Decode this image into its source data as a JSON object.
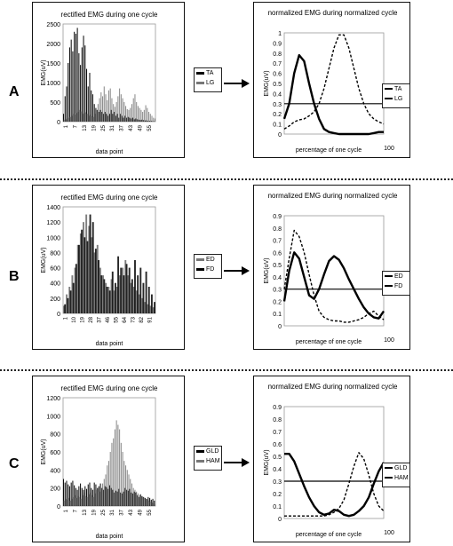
{
  "chart_data": [
    {
      "id": "A-raw",
      "type": "bar",
      "title": "rectified EMG during one cycle",
      "xlabel": "data point",
      "ylabel": "EMG(uV)",
      "ylim": [
        0,
        2500
      ],
      "y_ticks": [
        "2500",
        "2000",
        "1500",
        "1000",
        "500",
        "0"
      ],
      "x_ticks": [
        "1",
        "7",
        "13",
        "19",
        "25",
        "31",
        "37",
        "43",
        "49",
        "55"
      ],
      "legend": [
        "TA",
        "LG"
      ],
      "series": [
        {
          "name": "TA",
          "color": "#000000",
          "values": [
            200,
            650,
            900,
            1500,
            1900,
            2100,
            1800,
            2300,
            2250,
            2400,
            1750,
            1450,
            1900,
            2200,
            1950,
            1350,
            900,
            1250,
            800,
            700,
            450,
            350,
            300,
            250,
            300,
            250,
            200,
            250,
            200,
            150,
            200,
            300,
            200,
            250,
            150,
            200,
            100,
            200,
            150,
            100,
            150,
            100,
            120,
            100,
            80,
            100,
            60,
            80,
            60,
            50,
            40,
            50,
            40,
            30,
            30,
            20,
            20,
            20,
            10,
            10
          ]
        },
        {
          "name": "LG",
          "color": "#777777",
          "values": [
            50,
            60,
            80,
            100,
            120,
            150,
            200,
            180,
            220,
            250,
            300,
            260,
            200,
            220,
            240,
            200,
            150,
            180,
            140,
            120,
            200,
            300,
            450,
            600,
            750,
            650,
            900,
            700,
            550,
            800,
            850,
            600,
            450,
            380,
            500,
            650,
            850,
            700,
            600,
            500,
            400,
            320,
            300,
            350,
            450,
            600,
            700,
            500,
            400,
            350,
            300,
            250,
            300,
            420,
            350,
            250,
            200,
            150,
            100,
            80
          ]
        }
      ]
    },
    {
      "id": "A-norm",
      "type": "line",
      "title": "normalized EMG during normalized cycle",
      "xlabel": "percentage of one cycle",
      "x_end_label": "100",
      "ylabel": "EMG(uV)",
      "ylim": [
        0,
        1
      ],
      "y_ticks": [
        "1",
        "0.9",
        "0.8",
        "0.7",
        "0.6",
        "0.5",
        "0.4",
        "0.3",
        "0.2",
        "0.1",
        "0"
      ],
      "threshold": 0.3,
      "legend": [
        "TA",
        "LG"
      ],
      "x": [
        0,
        5,
        10,
        15,
        20,
        25,
        30,
        35,
        40,
        45,
        50,
        55,
        60,
        65,
        70,
        75,
        80,
        85,
        90,
        95,
        100
      ],
      "series": [
        {
          "name": "TA",
          "dashed": false,
          "values": [
            0.15,
            0.3,
            0.6,
            0.78,
            0.72,
            0.5,
            0.3,
            0.15,
            0.05,
            0.02,
            0.01,
            0,
            0,
            0,
            0,
            0,
            0,
            0,
            0.01,
            0.02,
            0.02
          ]
        },
        {
          "name": "LG",
          "dashed": true,
          "values": [
            0.05,
            0.08,
            0.12,
            0.14,
            0.15,
            0.18,
            0.22,
            0.3,
            0.45,
            0.65,
            0.85,
            0.98,
            0.98,
            0.85,
            0.65,
            0.45,
            0.3,
            0.2,
            0.15,
            0.12,
            0.1
          ]
        }
      ]
    },
    {
      "id": "B-raw",
      "type": "bar",
      "title": "rectified EMG during one cycle",
      "xlabel": "data point",
      "ylabel": "EMG(uV)",
      "ylim": [
        0,
        1400
      ],
      "y_ticks": [
        "1400",
        "1200",
        "1000",
        "800",
        "600",
        "400",
        "200",
        "0"
      ],
      "x_ticks": [
        "1",
        "10",
        "19",
        "28",
        "37",
        "46",
        "55",
        "64",
        "73",
        "82",
        "91"
      ],
      "legend": [
        "ED",
        "FD"
      ],
      "series": [
        {
          "name": "ED",
          "color": "#777777",
          "values": [
            100,
            250,
            350,
            500,
            600,
            900,
            1050,
            1200,
            1300,
            1150,
            1000,
            800,
            900,
            600,
            500,
            400,
            350,
            450,
            300,
            350,
            500,
            600,
            700,
            500,
            400,
            350,
            300,
            250,
            200,
            150,
            120,
            100,
            80
          ]
        },
        {
          "name": "FD",
          "color": "#000000",
          "values": [
            120,
            200,
            300,
            400,
            650,
            900,
            1100,
            1000,
            950,
            1300,
            1200,
            850,
            700,
            500,
            450,
            350,
            300,
            550,
            400,
            750,
            600,
            500,
            650,
            600,
            450,
            700,
            500,
            600,
            400,
            550,
            350,
            250,
            150
          ]
        }
      ]
    },
    {
      "id": "B-norm",
      "type": "line",
      "title": "normalized EMG during normalized cycle",
      "xlabel": "percentage of one cycle",
      "x_end_label": "100",
      "ylabel": "EMG(uV)",
      "ylim": [
        0,
        0.9
      ],
      "y_ticks": [
        "0.9",
        "0.8",
        "0.7",
        "0.6",
        "0.5",
        "0.4",
        "0.3",
        "0.2",
        "0.1",
        "0"
      ],
      "threshold": 0.3,
      "legend": [
        "ED",
        "FD"
      ],
      "x": [
        0,
        5,
        10,
        15,
        20,
        25,
        30,
        35,
        40,
        45,
        50,
        55,
        60,
        65,
        70,
        75,
        80,
        85,
        90,
        95,
        100
      ],
      "series": [
        {
          "name": "ED",
          "dashed": true,
          "values": [
            0.3,
            0.55,
            0.78,
            0.73,
            0.6,
            0.42,
            0.25,
            0.12,
            0.07,
            0.05,
            0.04,
            0.04,
            0.03,
            0.03,
            0.04,
            0.05,
            0.07,
            0.1,
            0.12,
            0.08,
            0.05
          ]
        },
        {
          "name": "FD",
          "dashed": false,
          "values": [
            0.2,
            0.45,
            0.6,
            0.55,
            0.4,
            0.25,
            0.22,
            0.3,
            0.42,
            0.53,
            0.57,
            0.54,
            0.47,
            0.38,
            0.3,
            0.22,
            0.15,
            0.1,
            0.07,
            0.06,
            0.12
          ]
        }
      ]
    },
    {
      "id": "C-raw",
      "type": "bar",
      "title": "rectified EMG during one cycle",
      "xlabel": "data point",
      "ylabel": "EMG(uV)",
      "ylim": [
        0,
        1200
      ],
      "y_ticks": [
        "1200",
        "1000",
        "800",
        "600",
        "400",
        "200",
        "0"
      ],
      "x_ticks": [
        "1",
        "7",
        "13",
        "19",
        "25",
        "31",
        "37",
        "43",
        "49",
        "55"
      ],
      "legend": [
        "GLD",
        "HAM"
      ],
      "series": [
        {
          "name": "GLD",
          "color": "#000000",
          "values": [
            300,
            260,
            280,
            240,
            220,
            260,
            280,
            230,
            200,
            180,
            220,
            250,
            200,
            180,
            220,
            190,
            240,
            260,
            200,
            180,
            260,
            240,
            200,
            220,
            250,
            200,
            180,
            220,
            210,
            190,
            230,
            200,
            180,
            150,
            170,
            160,
            190,
            150,
            140,
            160,
            200,
            180,
            170,
            190,
            150,
            140,
            160,
            150,
            120,
            100,
            130,
            110,
            100,
            90,
            80,
            100,
            90,
            70,
            80,
            60
          ]
        },
        {
          "name": "HAM",
          "color": "#777777",
          "values": [
            60,
            80,
            70,
            90,
            60,
            80,
            100,
            120,
            90,
            110,
            100,
            80,
            120,
            150,
            110,
            100,
            130,
            150,
            120,
            100,
            140,
            180,
            200,
            160,
            200,
            250,
            300,
            350,
            450,
            500,
            600,
            700,
            750,
            850,
            950,
            900,
            850,
            700,
            600,
            500,
            450,
            400,
            350,
            300,
            250,
            200,
            180,
            160,
            140,
            120,
            110,
            100,
            90,
            80,
            70,
            60,
            50,
            40,
            30,
            20
          ]
        }
      ]
    },
    {
      "id": "C-norm",
      "type": "line",
      "title": "normalized EMG during normalized cycle",
      "xlabel": "percentage of one cycle",
      "x_end_label": "100",
      "ylabel": "EMG(uV)",
      "ylim": [
        0,
        0.9
      ],
      "y_ticks": [
        "0.9",
        "0.8",
        "0.7",
        "0.6",
        "0.5",
        "0.4",
        "0.3",
        "0.2",
        "0.1",
        "0"
      ],
      "threshold": 0.3,
      "legend": [
        "GLD",
        "HAM"
      ],
      "x": [
        0,
        5,
        10,
        15,
        20,
        25,
        30,
        35,
        40,
        45,
        50,
        55,
        60,
        65,
        70,
        75,
        80,
        85,
        90,
        95,
        100
      ],
      "series": [
        {
          "name": "GLD",
          "dashed": false,
          "values": [
            0.52,
            0.52,
            0.46,
            0.36,
            0.26,
            0.17,
            0.1,
            0.05,
            0.03,
            0.04,
            0.07,
            0.06,
            0.03,
            0.02,
            0.03,
            0.06,
            0.1,
            0.17,
            0.28,
            0.38,
            0.45
          ]
        },
        {
          "name": "HAM",
          "dashed": true,
          "values": [
            0.02,
            0.02,
            0.02,
            0.02,
            0.02,
            0.02,
            0.02,
            0.02,
            0.02,
            0.03,
            0.05,
            0.08,
            0.15,
            0.28,
            0.42,
            0.53,
            0.48,
            0.35,
            0.2,
            0.1,
            0.06
          ]
        }
      ]
    }
  ],
  "rows": [
    {
      "label": "A"
    },
    {
      "label": "B"
    },
    {
      "label": "C"
    }
  ]
}
